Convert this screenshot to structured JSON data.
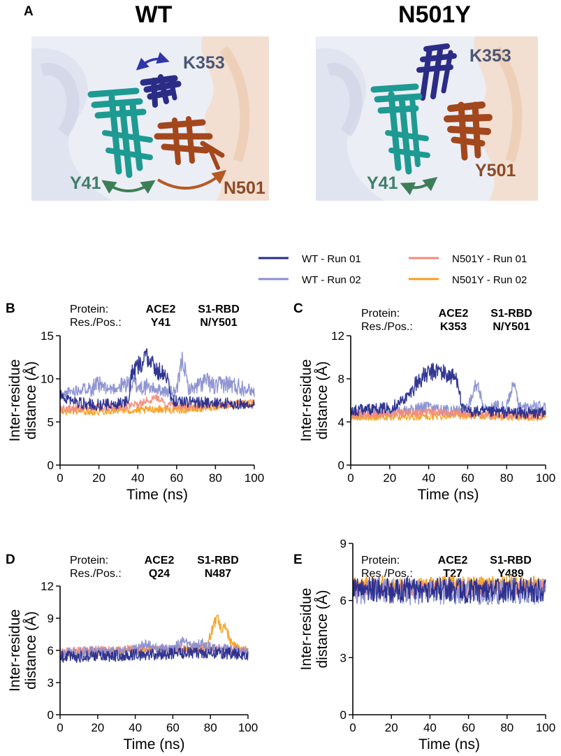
{
  "panel_a": {
    "letter": "A",
    "wt": {
      "title": "WT",
      "labels": [
        "K353",
        "Y41",
        "N501"
      ]
    },
    "mut": {
      "title": "N501Y",
      "labels": [
        "K353",
        "Y41",
        "Y501"
      ]
    }
  },
  "colors": {
    "wt_run01": "#262b8c",
    "wt_run02": "#8a8fd0",
    "n501y_run01": "#f58a7a",
    "n501y_run02": "#f5a020",
    "k353": "#2b2c86",
    "y41": "#1d9a92",
    "n501": "#a3471c",
    "arrow_teal": "#3c7f56",
    "label_gray": "#4a5774",
    "label_teal": "#3f7f6a",
    "label_brown": "#8c4a26"
  },
  "legend": [
    {
      "label": "WT - Run 01",
      "color": "#262b8c"
    },
    {
      "label": "WT - Run 02",
      "color": "#8a8fd0"
    },
    {
      "label": "N501Y - Run 01",
      "color": "#f58a7a"
    },
    {
      "label": "N501Y - Run 02",
      "color": "#f5a020"
    }
  ],
  "chart_data": [
    {
      "panel": "B",
      "type": "line",
      "header": {
        "row_labels": [
          "Protein:",
          "Res./Pos.:"
        ],
        "col1": [
          "ACE2",
          "Y41"
        ],
        "col2": [
          "S1-RBD",
          "N/Y501"
        ]
      },
      "xlabel": "Time (ns)",
      "ylabel": [
        "Inter-residue",
        "distance (Å)"
      ],
      "xlim": [
        0,
        100
      ],
      "ylim": [
        0,
        15
      ],
      "xticks": [
        0,
        20,
        40,
        60,
        80,
        100
      ],
      "yticks": [
        0,
        5,
        10,
        15
      ],
      "series": [
        {
          "name": "WT - Run 02",
          "color": "#8a8fd0",
          "x": [
            0,
            5,
            10,
            15,
            20,
            25,
            30,
            35,
            40,
            45,
            50,
            55,
            60,
            63,
            66,
            70,
            75,
            80,
            85,
            90,
            95,
            100
          ],
          "y": [
            7.8,
            8.5,
            8.8,
            9.0,
            9.2,
            8.8,
            9.0,
            9.5,
            9.2,
            9.0,
            8.8,
            8.5,
            8.5,
            12.5,
            8.8,
            9.0,
            9.8,
            9.0,
            9.5,
            9.2,
            9.0,
            8.5
          ]
        },
        {
          "name": "N501Y - Run 02",
          "color": "#f5a020",
          "x": [
            0,
            10,
            20,
            30,
            40,
            50,
            60,
            70,
            80,
            90,
            100
          ],
          "y": [
            6.2,
            6.3,
            6.2,
            6.4,
            6.3,
            6.5,
            6.4,
            6.5,
            6.8,
            7.0,
            7.2
          ]
        },
        {
          "name": "N501Y - Run 01",
          "color": "#f58a7a",
          "x": [
            0,
            10,
            20,
            30,
            40,
            45,
            50,
            55,
            60,
            70,
            80,
            90,
            100
          ],
          "y": [
            6.5,
            6.6,
            6.7,
            6.8,
            7.0,
            7.5,
            7.8,
            7.0,
            6.8,
            6.9,
            7.0,
            7.1,
            7.2
          ]
        },
        {
          "name": "WT - Run 01",
          "color": "#262b8c",
          "x": [
            0,
            5,
            10,
            20,
            30,
            35,
            37,
            40,
            45,
            50,
            55,
            57,
            60,
            70,
            80,
            90,
            100
          ],
          "y": [
            8.2,
            7.5,
            7.2,
            7.0,
            7.1,
            7.5,
            10.5,
            11.5,
            12.5,
            11.0,
            10.5,
            7.5,
            7.4,
            7.3,
            7.2,
            7.1,
            7.0
          ]
        }
      ]
    },
    {
      "panel": "C",
      "type": "line",
      "header": {
        "row_labels": [
          "Protein:",
          "Res./Pos.:"
        ],
        "col1": [
          "ACE2",
          "K353"
        ],
        "col2": [
          "S1-RBD",
          "N/Y501"
        ]
      },
      "xlabel": "Time (ns)",
      "ylabel": [
        "Inter-residue",
        "distance (Å)"
      ],
      "xlim": [
        0,
        100
      ],
      "ylim": [
        0,
        12
      ],
      "xticks": [
        0,
        20,
        40,
        60,
        80,
        100
      ],
      "yticks": [
        0,
        4,
        8,
        12
      ],
      "series": [
        {
          "name": "WT - Run 02",
          "color": "#8a8fd0",
          "x": [
            0,
            10,
            20,
            30,
            35,
            40,
            45,
            50,
            55,
            60,
            65,
            68,
            70,
            75,
            80,
            84,
            86,
            90,
            95,
            100
          ],
          "y": [
            4.8,
            4.9,
            4.9,
            5.0,
            5.3,
            5.5,
            5.2,
            5.0,
            5.0,
            5.2,
            8.0,
            5.2,
            5.3,
            5.5,
            5.3,
            8.0,
            5.4,
            5.3,
            5.5,
            5.2
          ]
        },
        {
          "name": "N501Y - Run 02",
          "color": "#f5a020",
          "x": [
            0,
            20,
            40,
            60,
            80,
            100
          ],
          "y": [
            4.5,
            4.5,
            4.5,
            4.6,
            4.5,
            4.4
          ]
        },
        {
          "name": "N501Y - Run 01",
          "color": "#f58a7a",
          "x": [
            0,
            20,
            40,
            60,
            80,
            100
          ],
          "y": [
            4.7,
            4.8,
            4.9,
            4.7,
            4.6,
            4.6
          ]
        },
        {
          "name": "WT - Run 01",
          "color": "#262b8c",
          "x": [
            0,
            10,
            20,
            25,
            30,
            33,
            36,
            40,
            45,
            50,
            55,
            57,
            60,
            70,
            80,
            90,
            100
          ],
          "y": [
            5.0,
            5.2,
            5.3,
            5.8,
            6.5,
            7.5,
            8.0,
            8.5,
            8.8,
            8.3,
            8.0,
            5.2,
            5.0,
            4.9,
            4.9,
            4.8,
            4.8
          ]
        }
      ]
    },
    {
      "panel": "D",
      "type": "line",
      "header": {
        "row_labels": [
          "Protein:",
          "Res./Pos.:"
        ],
        "col1": [
          "ACE2",
          "Q24"
        ],
        "col2": [
          "S1-RBD",
          "N487"
        ]
      },
      "xlabel": "Time (ns)",
      "ylabel": [
        "Inter-residue",
        "distance (Å)"
      ],
      "xlim": [
        0,
        100
      ],
      "ylim": [
        0,
        12
      ],
      "xticks": [
        0,
        20,
        40,
        60,
        80,
        100
      ],
      "yticks": [
        0,
        3,
        6,
        9,
        12
      ],
      "series": [
        {
          "name": "N501Y - Run 02",
          "color": "#f5a020",
          "x": [
            0,
            10,
            20,
            30,
            40,
            50,
            60,
            70,
            78,
            80,
            82,
            84,
            86,
            88,
            90,
            95,
            100
          ],
          "y": [
            5.6,
            5.7,
            5.8,
            5.9,
            6.0,
            6.1,
            6.0,
            6.3,
            6.5,
            7.5,
            8.5,
            9.0,
            8.0,
            8.5,
            7.0,
            6.2,
            6.0
          ]
        },
        {
          "name": "N501Y - Run 01",
          "color": "#f58a7a",
          "x": [
            0,
            10,
            20,
            30,
            40,
            50,
            60,
            70,
            80,
            90,
            100
          ],
          "y": [
            5.9,
            6.0,
            6.1,
            6.0,
            6.2,
            6.1,
            6.2,
            6.1,
            6.2,
            6.1,
            6.0
          ]
        },
        {
          "name": "WT - Run 02",
          "color": "#8a8fd0",
          "x": [
            0,
            10,
            20,
            30,
            40,
            45,
            50,
            60,
            65,
            70,
            75,
            80,
            90,
            100
          ],
          "y": [
            5.7,
            5.8,
            5.9,
            5.8,
            6.0,
            6.5,
            6.2,
            6.0,
            6.8,
            6.3,
            6.6,
            6.2,
            6.0,
            5.8
          ]
        },
        {
          "name": "WT - Run 01",
          "color": "#262b8c",
          "x": [
            0,
            10,
            20,
            30,
            40,
            50,
            60,
            70,
            80,
            90,
            100
          ],
          "y": [
            5.4,
            5.4,
            5.5,
            5.5,
            5.6,
            5.6,
            5.7,
            5.8,
            5.8,
            5.7,
            5.6
          ]
        }
      ]
    },
    {
      "panel": "E",
      "type": "line",
      "header": {
        "row_labels": [
          "Protein:",
          "Res./Pos.:"
        ],
        "col1": [
          "ACE2",
          "T27"
        ],
        "col2": [
          "S1-RBD",
          "Y489"
        ]
      },
      "xlabel": "Time (ns)",
      "ylabel": [
        "Inter-residue",
        "distance (Å)"
      ],
      "xlim": [
        0,
        100
      ],
      "ylim": [
        0,
        9
      ],
      "xticks": [
        0,
        20,
        40,
        60,
        80,
        100
      ],
      "yticks": [
        0,
        3,
        6,
        9
      ],
      "series": [
        {
          "name": "N501Y - Run 02",
          "color": "#f5a020",
          "x": [
            0,
            10,
            20,
            30,
            40,
            50,
            60,
            70,
            80,
            90,
            100
          ],
          "y": [
            6.8,
            6.9,
            6.8,
            6.7,
            6.8,
            6.9,
            6.8,
            6.9,
            7.0,
            6.9,
            6.8
          ]
        },
        {
          "name": "N501Y - Run 01",
          "color": "#f58a7a",
          "x": [
            0,
            10,
            20,
            30,
            40,
            50,
            60,
            70,
            80,
            90,
            100
          ],
          "y": [
            6.6,
            6.7,
            6.6,
            6.7,
            6.6,
            6.7,
            6.6,
            6.7,
            6.6,
            6.7,
            6.6
          ]
        },
        {
          "name": "WT - Run 02",
          "color": "#8a8fd0",
          "x": [
            0,
            10,
            20,
            30,
            40,
            50,
            60,
            70,
            80,
            90,
            100
          ],
          "y": [
            6.4,
            6.5,
            6.5,
            6.4,
            6.5,
            6.4,
            6.5,
            6.4,
            6.5,
            6.4,
            6.5
          ]
        },
        {
          "name": "WT - Run 01",
          "color": "#262b8c",
          "x": [
            0,
            10,
            20,
            30,
            40,
            50,
            60,
            70,
            80,
            90,
            100
          ],
          "y": [
            6.5,
            6.6,
            6.5,
            6.6,
            6.5,
            6.6,
            6.5,
            6.6,
            6.5,
            6.6,
            6.5
          ]
        }
      ]
    }
  ]
}
